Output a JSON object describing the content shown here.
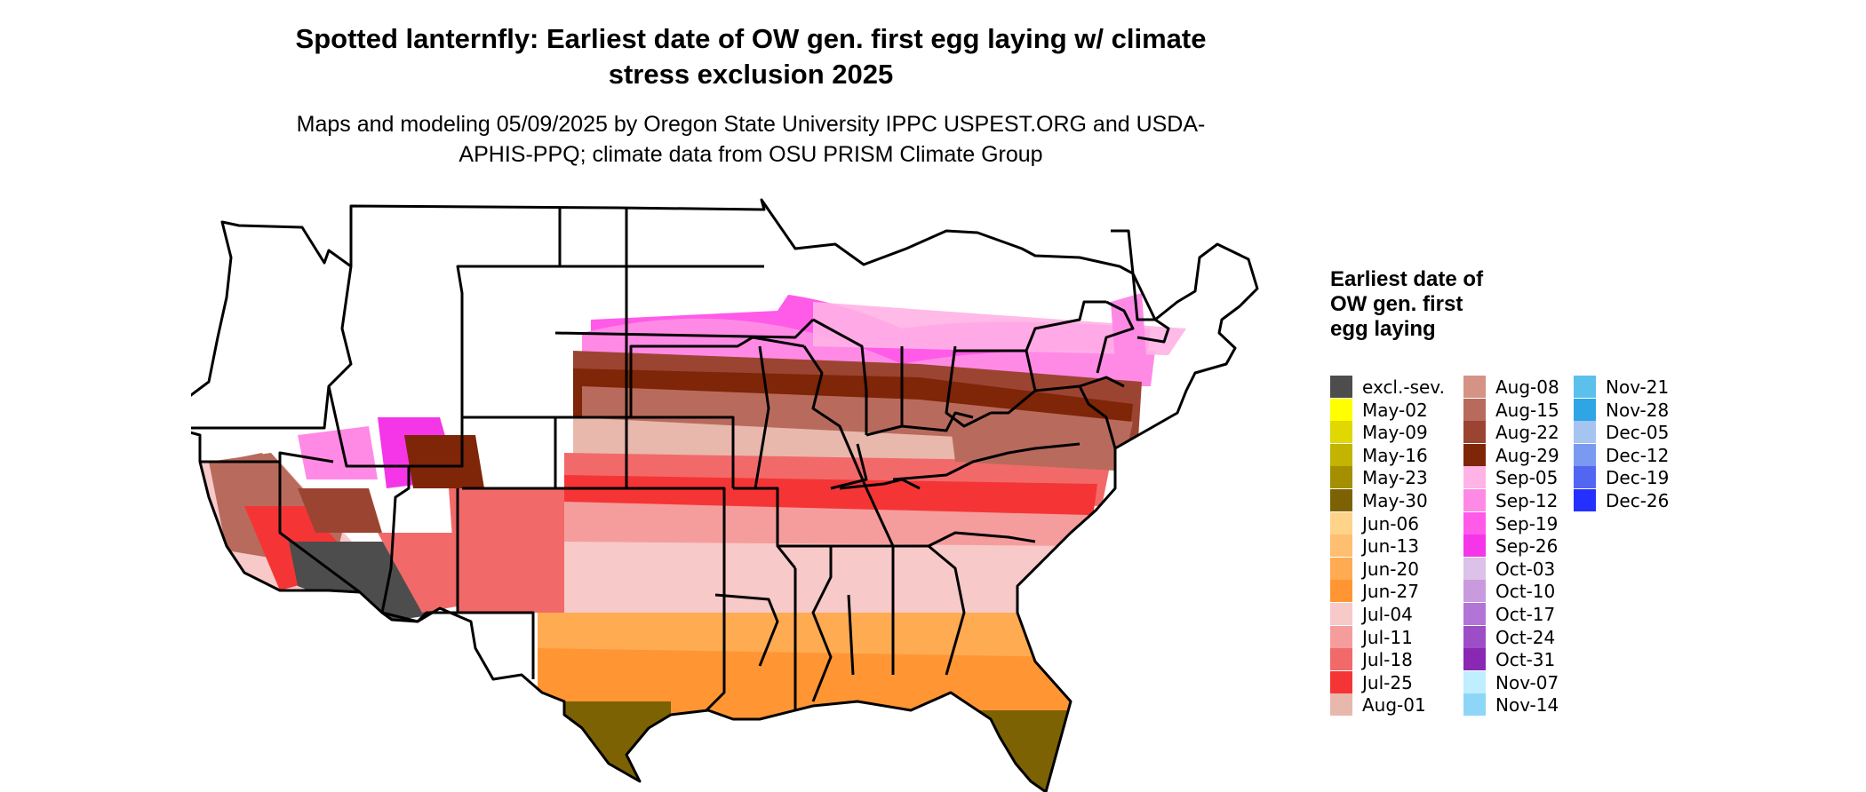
{
  "title": "Spotted lanternfly: Earliest date of OW gen. first egg laying w/ climate stress exclusion 2025",
  "subtitle": "Maps and modeling 05/09/2025 by Oregon State University IPPC USPEST.ORG and USDA-APHIS-PPQ; climate data from OSU PRISM Climate Group",
  "legend": {
    "title": "Earliest date of OW gen. first egg laying",
    "columns": [
      [
        {
          "label": "excl.-sev.",
          "color": "#4d4d4d"
        },
        {
          "label": "May-02",
          "color": "#ffff00"
        },
        {
          "label": "May-09",
          "color": "#e0d800"
        },
        {
          "label": "May-16",
          "color": "#c2b400"
        },
        {
          "label": "May-23",
          "color": "#a38f00"
        },
        {
          "label": "May-30",
          "color": "#7d6204"
        },
        {
          "label": "Jun-06",
          "color": "#ffd38a"
        },
        {
          "label": "Jun-13",
          "color": "#ffbe70"
        },
        {
          "label": "Jun-20",
          "color": "#ffab52"
        },
        {
          "label": "Jun-27",
          "color": "#ff9633"
        },
        {
          "label": "Jul-04",
          "color": "#f7c9c9"
        },
        {
          "label": "Jul-11",
          "color": "#f59d9d"
        },
        {
          "label": "Jul-18",
          "color": "#f26969"
        },
        {
          "label": "Jul-25",
          "color": "#f53535"
        },
        {
          "label": "Aug-01",
          "color": "#e8b8ad"
        }
      ],
      [
        {
          "label": "Aug-08",
          "color": "#d49385"
        },
        {
          "label": "Aug-15",
          "color": "#b86b5c"
        },
        {
          "label": "Aug-22",
          "color": "#9c4432"
        },
        {
          "label": "Aug-29",
          "color": "#7f2508"
        },
        {
          "label": "Sep-05",
          "color": "#ffb3e6"
        },
        {
          "label": "Sep-12",
          "color": "#ff8ae6"
        },
        {
          "label": "Sep-19",
          "color": "#ff5ae8"
        },
        {
          "label": "Sep-26",
          "color": "#f535e8"
        },
        {
          "label": "Oct-03",
          "color": "#dcc1e8"
        },
        {
          "label": "Oct-10",
          "color": "#c99ade"
        },
        {
          "label": "Oct-17",
          "color": "#b274d6"
        },
        {
          "label": "Oct-24",
          "color": "#9d4ec7"
        },
        {
          "label": "Oct-31",
          "color": "#8a27b3"
        },
        {
          "label": "Nov-07",
          "color": "#bfeeff"
        },
        {
          "label": "Nov-14",
          "color": "#8ed6f7"
        }
      ],
      [
        {
          "label": "Nov-21",
          "color": "#5cc0ed"
        },
        {
          "label": "Nov-28",
          "color": "#2ea6e6"
        },
        {
          "label": "Dec-05",
          "color": "#a6c4f0"
        },
        {
          "label": "Dec-12",
          "color": "#7a99f0"
        },
        {
          "label": "Dec-19",
          "color": "#5266f2"
        },
        {
          "label": "Dec-26",
          "color": "#2430ff"
        }
      ]
    ]
  }
}
